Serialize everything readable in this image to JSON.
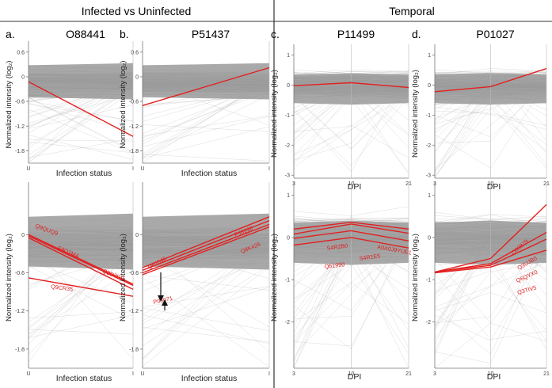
{
  "headers": {
    "left": "Infected vs Uninfected",
    "right": "Temporal"
  },
  "colors": {
    "background_lines": "#9a9a9a",
    "highlight": "#e32020",
    "divider": "#333333"
  },
  "chart_data": [
    {
      "panel_letter": "a.",
      "title": "O88441",
      "type": "line",
      "xlabel": "Infection status",
      "ylabel": "Normalized intensity (log₂)",
      "categories": [
        "U",
        "I"
      ],
      "x_ticks": [
        "U",
        "I"
      ],
      "ylim": [
        -2.1,
        0.75
      ],
      "y_ticks": [
        0.6,
        0,
        -0.6,
        -1.2,
        -1.8
      ],
      "y_tick_labels": [
        "0.6",
        "0",
        "-0.6",
        "-1.2",
        "-1.8"
      ],
      "series": [
        {
          "name": "",
          "values": [
            -0.12,
            -1.45
          ]
        }
      ]
    },
    {
      "panel_letter": "b.",
      "title": "P51437",
      "type": "line",
      "xlabel": "Infection status",
      "ylabel": "Normalized intensity (log₂)",
      "categories": [
        "U",
        "I"
      ],
      "x_ticks": [
        "U",
        "I"
      ],
      "ylim": [
        -2.1,
        0.75
      ],
      "y_ticks": [
        0.6,
        0,
        -0.6,
        -1.2,
        -1.8
      ],
      "y_tick_labels": [
        "0.6",
        "0",
        "-0.6",
        "-1.2",
        "-1.8"
      ],
      "series": [
        {
          "name": "",
          "values": [
            -0.7,
            0.22
          ]
        }
      ]
    },
    {
      "panel_letter": "c.",
      "title": "P11499",
      "type": "line",
      "xlabel": "DPI",
      "ylabel": "Normalized intensity (log₂)",
      "categories": [
        "3",
        "10",
        "21"
      ],
      "x_ticks": [
        "3",
        "10",
        "21"
      ],
      "ylim": [
        -3.1,
        1.2
      ],
      "y_ticks": [
        1,
        0,
        -1,
        -2,
        -3
      ],
      "y_tick_labels": [
        "1",
        "0",
        "-1",
        "-2",
        "-3"
      ],
      "series": [
        {
          "name": "",
          "values": [
            -0.02,
            0.08,
            -0.08
          ]
        }
      ]
    },
    {
      "panel_letter": "d.",
      "title": "P01027",
      "type": "line",
      "xlabel": "DPI",
      "ylabel": "Normalized intensity (log₂)",
      "categories": [
        "3",
        "10",
        "21"
      ],
      "x_ticks": [
        "3",
        "10",
        "21"
      ],
      "ylim": [
        -3.1,
        1.2
      ],
      "y_ticks": [
        1,
        0,
        -1,
        -2,
        -3
      ],
      "y_tick_labels": [
        "1",
        "0",
        "-1",
        "-2",
        "-3"
      ],
      "series": [
        {
          "name": "",
          "values": [
            -0.22,
            -0.05,
            0.55
          ]
        }
      ]
    },
    {
      "panel_letter": "",
      "title": "",
      "type": "line",
      "xlabel": "Infection status",
      "ylabel": "Normalized intensity (log₂)",
      "categories": [
        "U",
        "I"
      ],
      "x_ticks": [
        "U",
        "I"
      ],
      "ylim": [
        -2.1,
        0.75
      ],
      "y_ticks": [
        0,
        -0.6,
        -1.2,
        -1.8
      ],
      "y_tick_labels": [
        "0",
        "-0.6",
        "-1.2",
        "-1.8"
      ],
      "series": [
        {
          "name": "Q9QUQ9",
          "values": [
            0.0,
            -0.78
          ]
        },
        {
          "name": "E9Q2M4",
          "values": [
            -0.05,
            -0.86
          ]
        },
        {
          "name": "Q9D3D9",
          "values": [
            -0.02,
            -0.8
          ]
        },
        {
          "name": "Q9CR35",
          "values": [
            -0.68,
            -0.97
          ]
        }
      ]
    },
    {
      "panel_letter": "",
      "title": "",
      "type": "line",
      "xlabel": "Infection status",
      "ylabel": "Normalized intensity (log₂)",
      "categories": [
        "U",
        "I"
      ],
      "x_ticks": [
        "U",
        "I"
      ],
      "ylim": [
        -2.1,
        0.75
      ],
      "y_ticks": [
        0,
        -0.6,
        -1.2,
        -1.8
      ],
      "y_tick_labels": [
        "0",
        "-0.6",
        "-1.2",
        "-1.8"
      ],
      "series": [
        {
          "name": "P49290",
          "values": [
            -0.52,
            0.28
          ]
        },
        {
          "name": "Q8K426",
          "values": [
            -0.56,
            0.22
          ]
        },
        {
          "name": "Q61646",
          "values": [
            -0.6,
            0.16
          ]
        },
        {
          "name": "P08071",
          "values": [
            -0.63,
            0.12
          ]
        }
      ]
    },
    {
      "panel_letter": "",
      "title": "",
      "type": "line",
      "xlabel": "DPI",
      "ylabel": "Normalized intensity (log₂)",
      "categories": [
        "3",
        "10",
        "21"
      ],
      "x_ticks": [
        "3",
        "10",
        "21"
      ],
      "ylim": [
        -3.1,
        1.2
      ],
      "y_ticks": [
        1,
        0,
        -1,
        -2
      ],
      "y_tick_labels": [
        "1",
        "0",
        "-1",
        "-2"
      ],
      "series": [
        {
          "name": "S4R2B0",
          "values": [
            0.2,
            0.36,
            0.2
          ]
        },
        {
          "name": "A0A0J9YUE1",
          "values": [
            0.08,
            0.32,
            0.1
          ]
        },
        {
          "name": "S4R1E5",
          "values": [
            -0.02,
            0.16,
            -0.08
          ]
        },
        {
          "name": "Q61990",
          "values": [
            -0.18,
            0.0,
            -0.25
          ]
        }
      ]
    },
    {
      "panel_letter": "",
      "title": "",
      "type": "line",
      "xlabel": "DPI",
      "ylabel": "Normalized intensity (log₂)",
      "categories": [
        "3",
        "10",
        "21"
      ],
      "x_ticks": [
        "3",
        "10",
        "21"
      ],
      "ylim": [
        -3.1,
        1.2
      ],
      "y_ticks": [
        1,
        0,
        -1,
        -2
      ],
      "y_tick_labels": [
        "1",
        "0",
        "-1",
        "-2"
      ],
      "series": [
        {
          "name": "Q08879",
          "values": [
            -0.82,
            -0.5,
            0.78
          ]
        },
        {
          "name": "Q3UJB0",
          "values": [
            -0.82,
            -0.62,
            0.12
          ]
        },
        {
          "name": "Q6QYX0",
          "values": [
            -0.82,
            -0.66,
            -0.04
          ]
        },
        {
          "name": "Q3TIV5",
          "values": [
            -0.84,
            -0.7,
            -0.3
          ]
        }
      ]
    }
  ]
}
